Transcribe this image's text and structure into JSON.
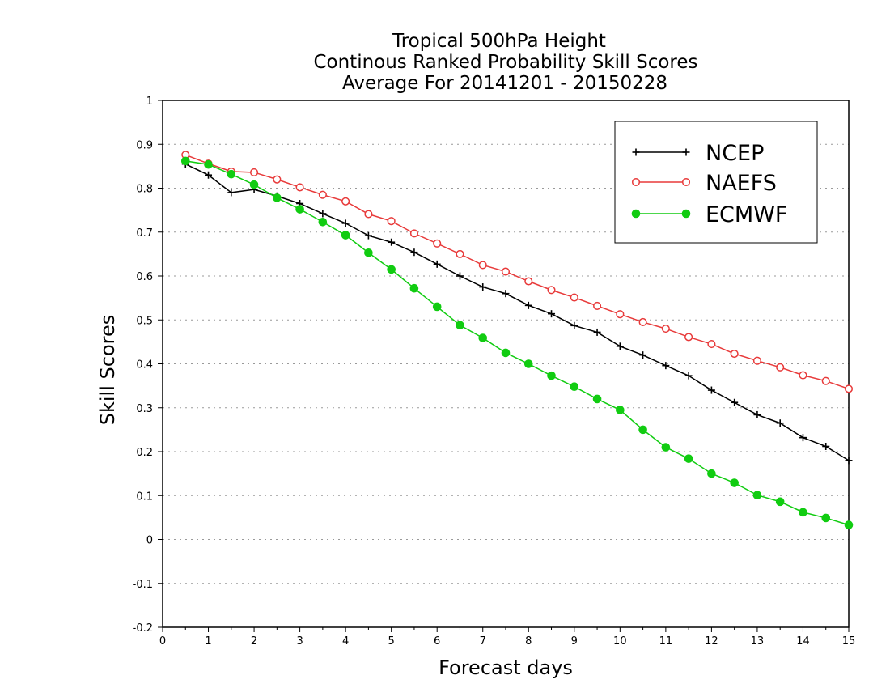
{
  "chart_data": {
    "type": "line",
    "title": [
      "Tropical 500hPa Height",
      "Continous Ranked Probability Skill Scores",
      "Average For 20141201 - 20150228"
    ],
    "xlabel": "Forecast days",
    "ylabel": "Skill Scores",
    "xlim": [
      0,
      15
    ],
    "ylim": [
      -0.2,
      1
    ],
    "x_ticks": [
      "0",
      "1",
      "2",
      "3",
      "4",
      "5",
      "6",
      "7",
      "8",
      "9",
      "10",
      "11",
      "12",
      "13",
      "14",
      "15"
    ],
    "y_ticks": [
      "-0.2",
      "-0.1",
      "0",
      "0.1",
      "0.2",
      "0.3",
      "0.4",
      "0.5",
      "0.6",
      "0.7",
      "0.8",
      "0.9",
      "1"
    ],
    "grid": "horizontal dotted",
    "legend_position": "top-right",
    "x": [
      0.5,
      1,
      1.5,
      2,
      2.5,
      3,
      3.5,
      4,
      4.5,
      5,
      5.5,
      6,
      6.5,
      7,
      7.5,
      8,
      8.5,
      9,
      9.5,
      10,
      10.5,
      11,
      11.5,
      12,
      12.5,
      13,
      13.5,
      14,
      14.5,
      15
    ],
    "series": [
      {
        "name": "NCEP",
        "color": "#000000",
        "marker": "plus",
        "values": [
          0.855,
          0.83,
          0.79,
          0.797,
          0.782,
          0.765,
          0.742,
          0.72,
          0.692,
          0.677,
          0.654,
          0.627,
          0.6,
          0.575,
          0.56,
          0.533,
          0.514,
          0.487,
          0.472,
          0.44,
          0.42,
          0.396,
          0.373,
          0.34,
          0.312,
          0.284,
          0.265,
          0.232,
          0.212,
          0.18
        ]
      },
      {
        "name": "NAEFS",
        "color": "#e83a3a",
        "marker": "open-circle",
        "values": [
          0.876,
          0.856,
          0.838,
          0.836,
          0.82,
          0.802,
          0.785,
          0.77,
          0.741,
          0.725,
          0.697,
          0.674,
          0.65,
          0.625,
          0.61,
          0.588,
          0.568,
          0.551,
          0.532,
          0.513,
          0.495,
          0.48,
          0.461,
          0.445,
          0.423,
          0.407,
          0.392,
          0.374,
          0.361,
          0.343
        ]
      },
      {
        "name": "ECMWF",
        "color": "#11cc11",
        "marker": "filled-circle",
        "values": [
          0.862,
          0.854,
          0.832,
          0.808,
          0.778,
          0.752,
          0.723,
          0.693,
          0.653,
          0.615,
          0.572,
          0.53,
          0.488,
          0.459,
          0.425,
          0.4,
          0.373,
          0.348,
          0.32,
          0.295,
          0.25,
          0.21,
          0.184,
          0.15,
          0.129,
          0.101,
          0.086,
          0.062,
          0.049,
          0.033
        ]
      }
    ]
  }
}
